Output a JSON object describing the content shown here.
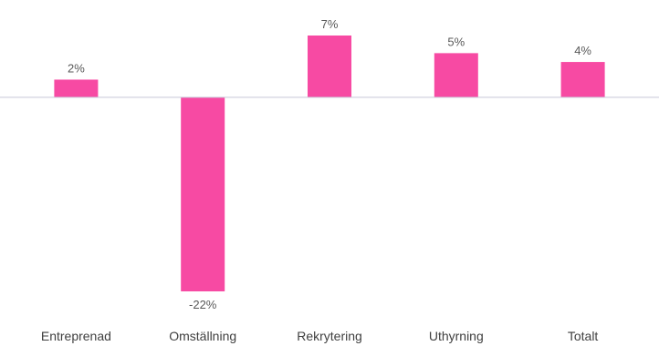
{
  "chart_data": {
    "type": "bar",
    "categories": [
      "Entreprenad",
      "Omställning",
      "Rekrytering",
      "Uthyrning",
      "Totalt"
    ],
    "values": [
      2,
      -22,
      7,
      5,
      4
    ],
    "data_labels": [
      "2%",
      "-22%",
      "7%",
      "5%",
      "4%"
    ],
    "ylim": [
      -22,
      7
    ],
    "bar_color": "#f74aa3",
    "axis_color": "#c8c8d8",
    "grid": false,
    "legend": "none"
  }
}
